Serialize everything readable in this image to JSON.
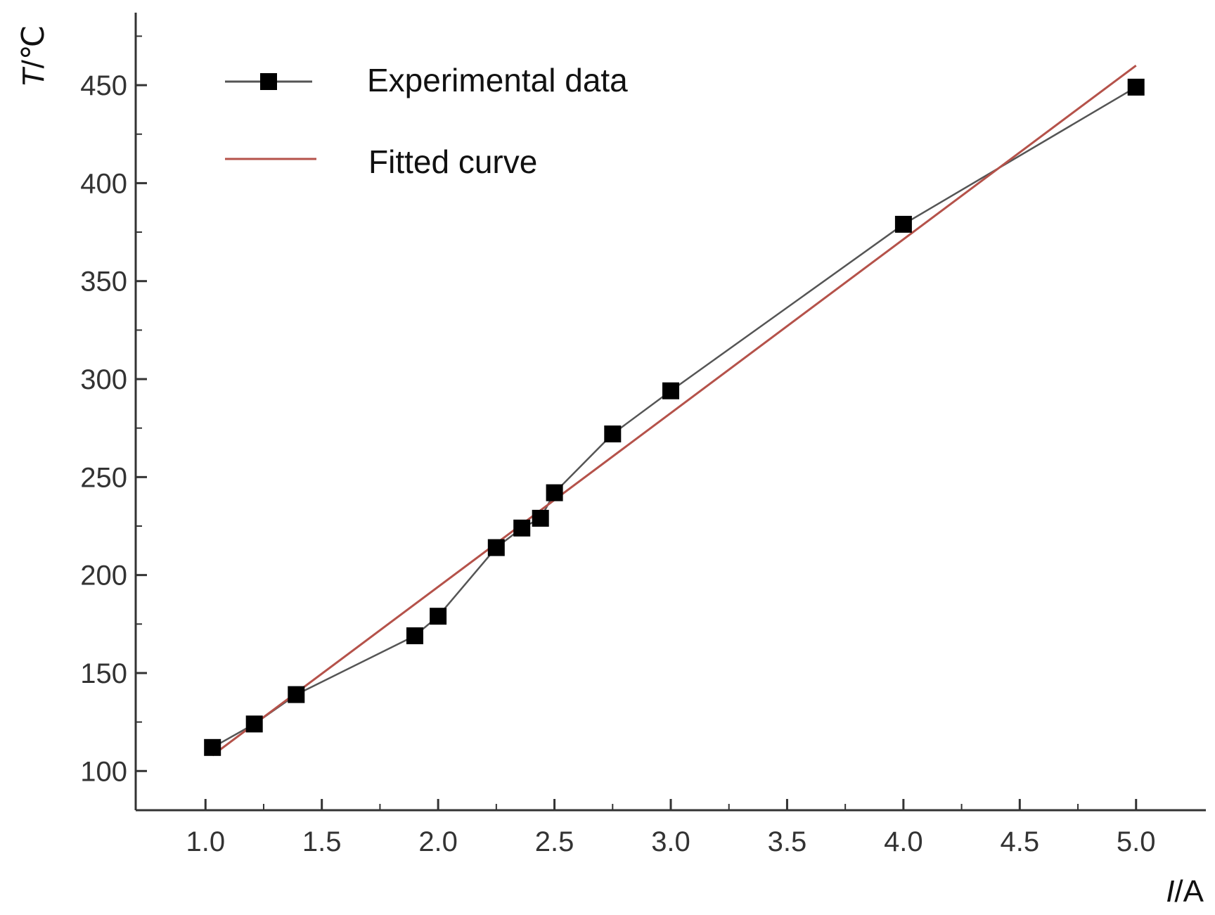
{
  "chart_data": {
    "type": "line",
    "title": "",
    "xlabel": {
      "italic": "I",
      "rest": "/A"
    },
    "ylabel": {
      "italic": "T",
      "rest": "/℃"
    },
    "xlim": [
      0.7,
      5.3
    ],
    "ylim": [
      80,
      487
    ],
    "x_ticks": [
      1.0,
      1.5,
      2.0,
      2.5,
      3.0,
      3.5,
      4.0,
      4.5,
      5.0
    ],
    "x_tick_labels": [
      "1.0",
      "1.5",
      "2.0",
      "2.5",
      "3.0",
      "3.5",
      "4.0",
      "4.5",
      "5.0"
    ],
    "x_minor_ticks": [
      1.25,
      1.75,
      2.25,
      2.75,
      3.25,
      3.75,
      4.25,
      4.75
    ],
    "y_ticks": [
      100,
      150,
      200,
      250,
      300,
      350,
      400,
      450
    ],
    "y_tick_labels": [
      "100",
      "150",
      "200",
      "250",
      "300",
      "350",
      "400",
      "450"
    ],
    "y_minor_ticks": [
      125,
      175,
      225,
      275,
      325,
      375,
      425,
      475
    ],
    "grid": false,
    "legend_position": "top-left",
    "series": [
      {
        "name": "Experimental data",
        "style": "line-with-square-markers",
        "color": "#555555",
        "marker_color": "#000000",
        "x": [
          1.03,
          1.21,
          1.39,
          1.9,
          2.0,
          2.25,
          2.36,
          2.44,
          2.5,
          2.75,
          3.0,
          4.0,
          5.0
        ],
        "y": [
          112,
          124,
          139,
          169,
          179,
          214,
          224,
          229,
          242,
          272,
          294,
          379,
          449
        ]
      },
      {
        "name": "Fitted curve",
        "style": "line",
        "color": "#b5524a",
        "x": [
          1.03,
          5.0
        ],
        "y": [
          108,
          460
        ]
      }
    ]
  }
}
